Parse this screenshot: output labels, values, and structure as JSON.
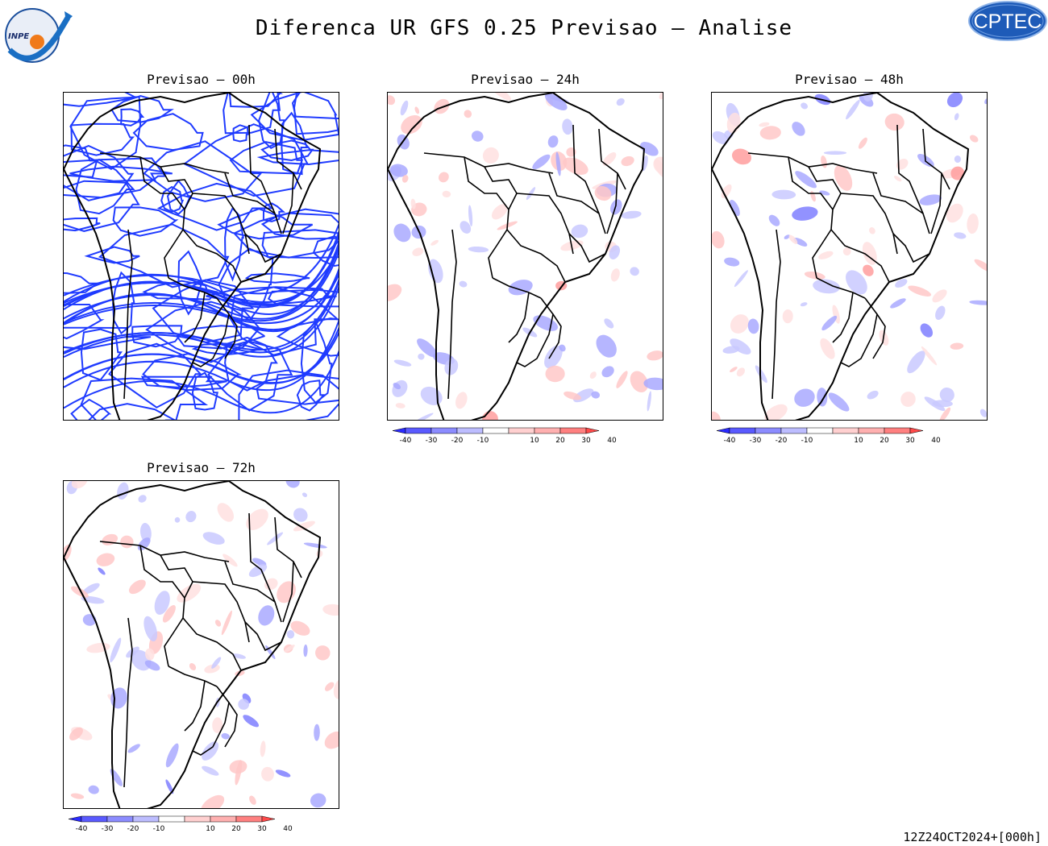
{
  "title": "Diferenca UR GFS 0.25 Previsao — Analise",
  "logos": {
    "left": {
      "text": "INPE",
      "icon": "inpe-logo"
    },
    "right": {
      "text": "CPTEC",
      "icon": "cptec-logo"
    }
  },
  "panels": [
    {
      "id": "p00",
      "title": "Previsao — 00h",
      "style": "contour"
    },
    {
      "id": "p24",
      "title": "Previsao — 24h",
      "style": "shaded"
    },
    {
      "id": "p48",
      "title": "Previsao — 48h",
      "style": "shaded"
    },
    {
      "id": "p72",
      "title": "Previsao — 72h",
      "style": "shaded"
    }
  ],
  "colorbar": {
    "labels": [
      "-40",
      "-30",
      "-20",
      "-10",
      "10",
      "20",
      "30",
      "40"
    ],
    "colors": [
      "#2b2bff",
      "#5a5aff",
      "#8c8cff",
      "#bdbdff",
      "#ffffff",
      "#ffd0d0",
      "#ffb0b0",
      "#ff8080",
      "#ff4a4a"
    ]
  },
  "timestamp": "12Z24OCT2024+[000h]"
}
